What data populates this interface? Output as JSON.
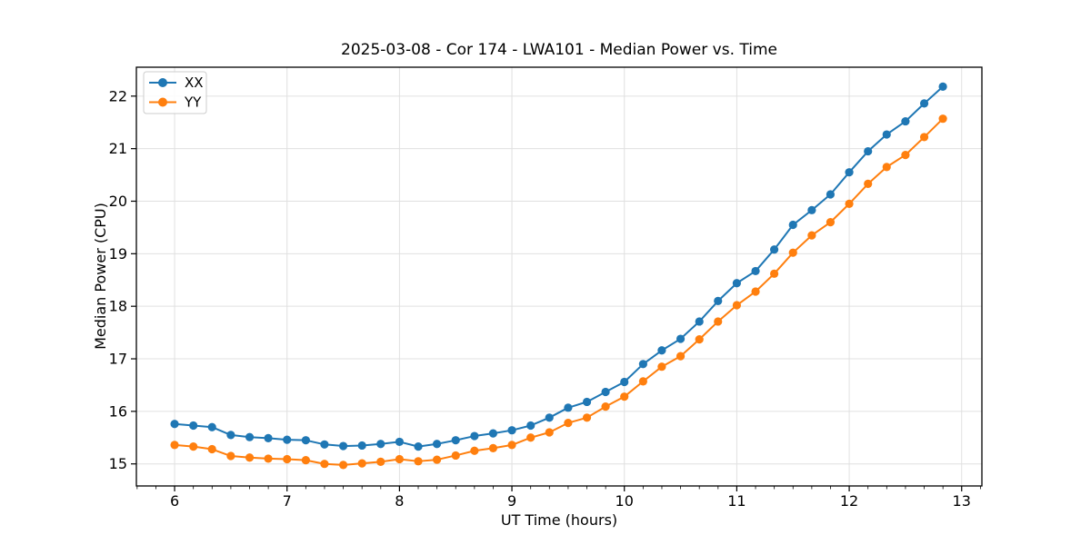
{
  "figure": {
    "background": "#ffffff"
  },
  "chart_data": {
    "type": "line",
    "title": "2025-03-08 - Cor 174 - LWA101 - Median Power vs. Time",
    "xlabel": "UT Time (hours)",
    "ylabel": "Median Power (CPU)",
    "xlim": [
      5.66,
      13.18
    ],
    "ylim": [
      14.58,
      22.55
    ],
    "xticks": [
      6,
      7,
      8,
      9,
      10,
      11,
      12,
      13
    ],
    "yticks": [
      15,
      16,
      17,
      18,
      19,
      20,
      21,
      22
    ],
    "x_minor_step": 0.16667,
    "grid": true,
    "legend": {
      "position": "upper left",
      "entries": [
        "XX",
        "YY"
      ]
    },
    "x": [
      6.0,
      6.167,
      6.333,
      6.5,
      6.667,
      6.833,
      7.0,
      7.167,
      7.333,
      7.5,
      7.667,
      7.833,
      8.0,
      8.167,
      8.333,
      8.5,
      8.667,
      8.833,
      9.0,
      9.167,
      9.333,
      9.5,
      9.667,
      9.833,
      10.0,
      10.167,
      10.333,
      10.5,
      10.667,
      10.833,
      11.0,
      11.167,
      11.333,
      11.5,
      11.667,
      11.833,
      12.0,
      12.167,
      12.333,
      12.5,
      12.667,
      12.833
    ],
    "series": [
      {
        "name": "XX",
        "color": "#1f77b4",
        "values": [
          15.76,
          15.73,
          15.7,
          15.55,
          15.51,
          15.49,
          15.46,
          15.45,
          15.37,
          15.34,
          15.35,
          15.38,
          15.42,
          15.33,
          15.38,
          15.45,
          15.53,
          15.58,
          15.64,
          15.73,
          15.88,
          16.07,
          16.18,
          16.37,
          16.56,
          16.9,
          17.16,
          17.38,
          17.71,
          18.1,
          18.44,
          18.67,
          19.08,
          19.55,
          19.83,
          20.13,
          20.55,
          20.95,
          21.27,
          21.52,
          21.86,
          22.18
        ]
      },
      {
        "name": "YY",
        "color": "#ff7f0e",
        "values": [
          15.36,
          15.33,
          15.28,
          15.15,
          15.12,
          15.1,
          15.09,
          15.07,
          15.0,
          14.98,
          15.01,
          15.04,
          15.09,
          15.05,
          15.08,
          15.16,
          15.25,
          15.3,
          15.36,
          15.5,
          15.6,
          15.78,
          15.88,
          16.09,
          16.28,
          16.57,
          16.85,
          17.05,
          17.37,
          17.71,
          18.02,
          18.28,
          18.62,
          19.02,
          19.35,
          19.6,
          19.95,
          20.33,
          20.65,
          20.88,
          21.22,
          21.57
        ]
      }
    ]
  },
  "style": {
    "grid_color": "#e0e0e0",
    "spine_color": "#000000",
    "legend_border_color": "#cccccc",
    "legend_fill": "#ffffff"
  }
}
